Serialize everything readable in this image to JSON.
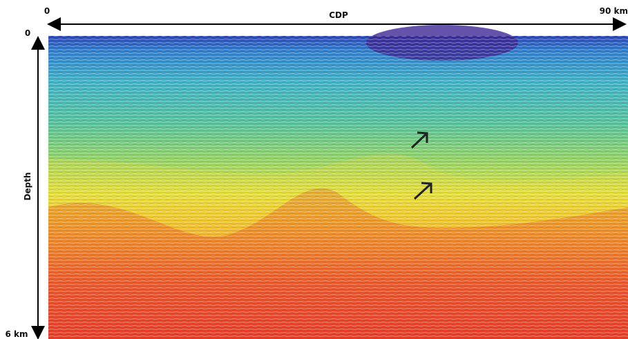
{
  "axes": {
    "x": {
      "start": "0",
      "title": "CDP",
      "end": "90 km"
    },
    "y": {
      "start": "0",
      "title": "Depth",
      "end": "6 km"
    }
  }
}
